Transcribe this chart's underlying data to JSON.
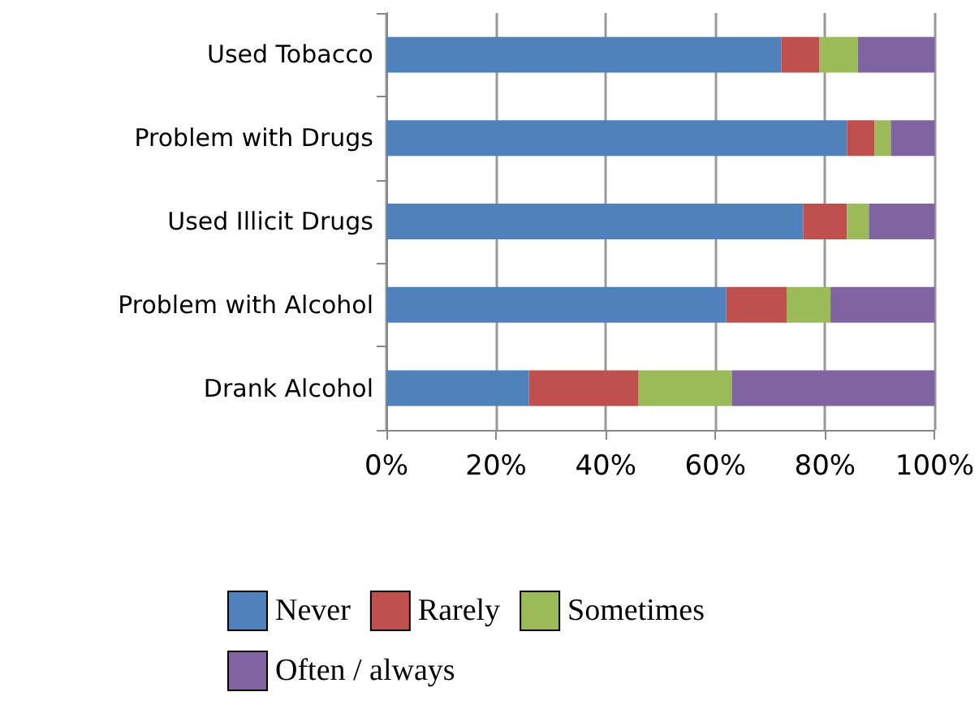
{
  "chart_data": {
    "type": "bar",
    "orientation": "horizontal",
    "stacked": true,
    "categories": [
      "Used Tobacco",
      "Problem with Drugs",
      "Used Illicit Drugs",
      "Problem with Alcohol",
      "Drank Alcohol"
    ],
    "series": [
      {
        "name": "Never",
        "color": "#4f81bd",
        "values": [
          72,
          84,
          76,
          62,
          26
        ]
      },
      {
        "name": "Rarely",
        "color": "#c0504d",
        "values": [
          7,
          5,
          8,
          11,
          20
        ]
      },
      {
        "name": "Sometimes",
        "color": "#9bbb59",
        "values": [
          7,
          3,
          4,
          8,
          17
        ]
      },
      {
        "name": "Often / always",
        "color": "#8064a2",
        "values": [
          14,
          8,
          12,
          19,
          37
        ]
      }
    ],
    "xlim": [
      0,
      100
    ],
    "xticks": [
      {
        "value": 0,
        "label": "0%"
      },
      {
        "value": 20,
        "label": "20%"
      },
      {
        "value": 40,
        "label": "40%"
      },
      {
        "value": 60,
        "label": "60%"
      },
      {
        "value": 80,
        "label": "80%"
      },
      {
        "value": 100,
        "label": "100%"
      }
    ],
    "grid": "x",
    "legend": "bottom"
  }
}
